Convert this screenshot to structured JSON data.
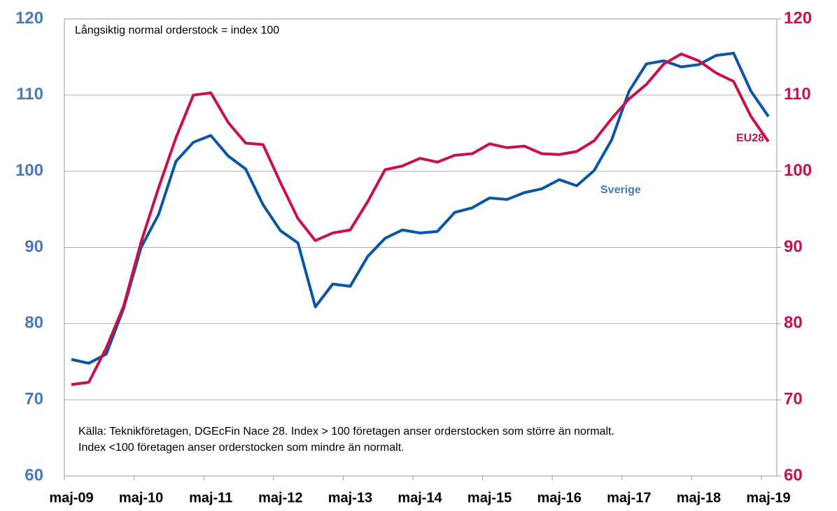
{
  "chart_data": {
    "type": "line",
    "categories": [
      "maj-09",
      null,
      null,
      null,
      "maj-10",
      null,
      null,
      null,
      "maj-11",
      null,
      null,
      null,
      "maj-12",
      null,
      null,
      null,
      "maj-13",
      null,
      null,
      null,
      "maj-14",
      null,
      null,
      null,
      "maj-15",
      null,
      null,
      null,
      "maj-16",
      null,
      null,
      null,
      "maj-17",
      null,
      null,
      null,
      "maj-18",
      null,
      null,
      null,
      "maj-19"
    ],
    "series": [
      {
        "name": "Sverige",
        "color": "#0a56a6",
        "values": [
          75.3,
          74.8,
          76.0,
          82.0,
          90.0,
          94.3,
          101.3,
          103.8,
          104.7,
          102.0,
          100.3,
          95.6,
          92.2,
          90.6,
          82.2,
          85.2,
          84.9,
          88.8,
          91.2,
          92.3,
          91.9,
          92.1,
          94.6,
          95.2,
          96.5,
          96.3,
          97.2,
          97.7,
          98.9,
          98.1,
          100.1,
          104.1,
          110.5,
          114.1,
          114.5,
          113.7,
          114.0,
          115.2,
          115.5,
          110.5,
          107.2
        ]
      },
      {
        "name": "EU28",
        "color": "#c8104a",
        "axis": "y2",
        "values": [
          72.0,
          72.3,
          76.8,
          82.3,
          90.7,
          97.8,
          104.4,
          110.0,
          110.3,
          106.4,
          103.7,
          103.5,
          98.5,
          93.8,
          90.9,
          91.9,
          92.3,
          96.0,
          100.2,
          100.7,
          101.7,
          101.2,
          102.1,
          102.3,
          103.6,
          103.1,
          103.3,
          102.3,
          102.2,
          102.6,
          104.0,
          106.9,
          109.5,
          111.4,
          114.1,
          115.4,
          114.5,
          112.9,
          111.8,
          107.2,
          103.9
        ]
      }
    ],
    "ylim": [
      60,
      120
    ],
    "yticks": [
      60,
      70,
      80,
      90,
      100,
      110,
      120
    ],
    "y2lim": [
      60,
      120
    ],
    "y2ticks": [
      60,
      70,
      80,
      90,
      100,
      110,
      120
    ],
    "grid": true,
    "annotations": [
      "Långsiktig normal orderstock = index 100",
      "Källa: Teknikföretagen, DGEcFin Nace 28. Index > 100 företagen anser orderstocken som större än normalt.",
      "Index <100 företagen anser orderstocken som mindre än normalt."
    ]
  }
}
